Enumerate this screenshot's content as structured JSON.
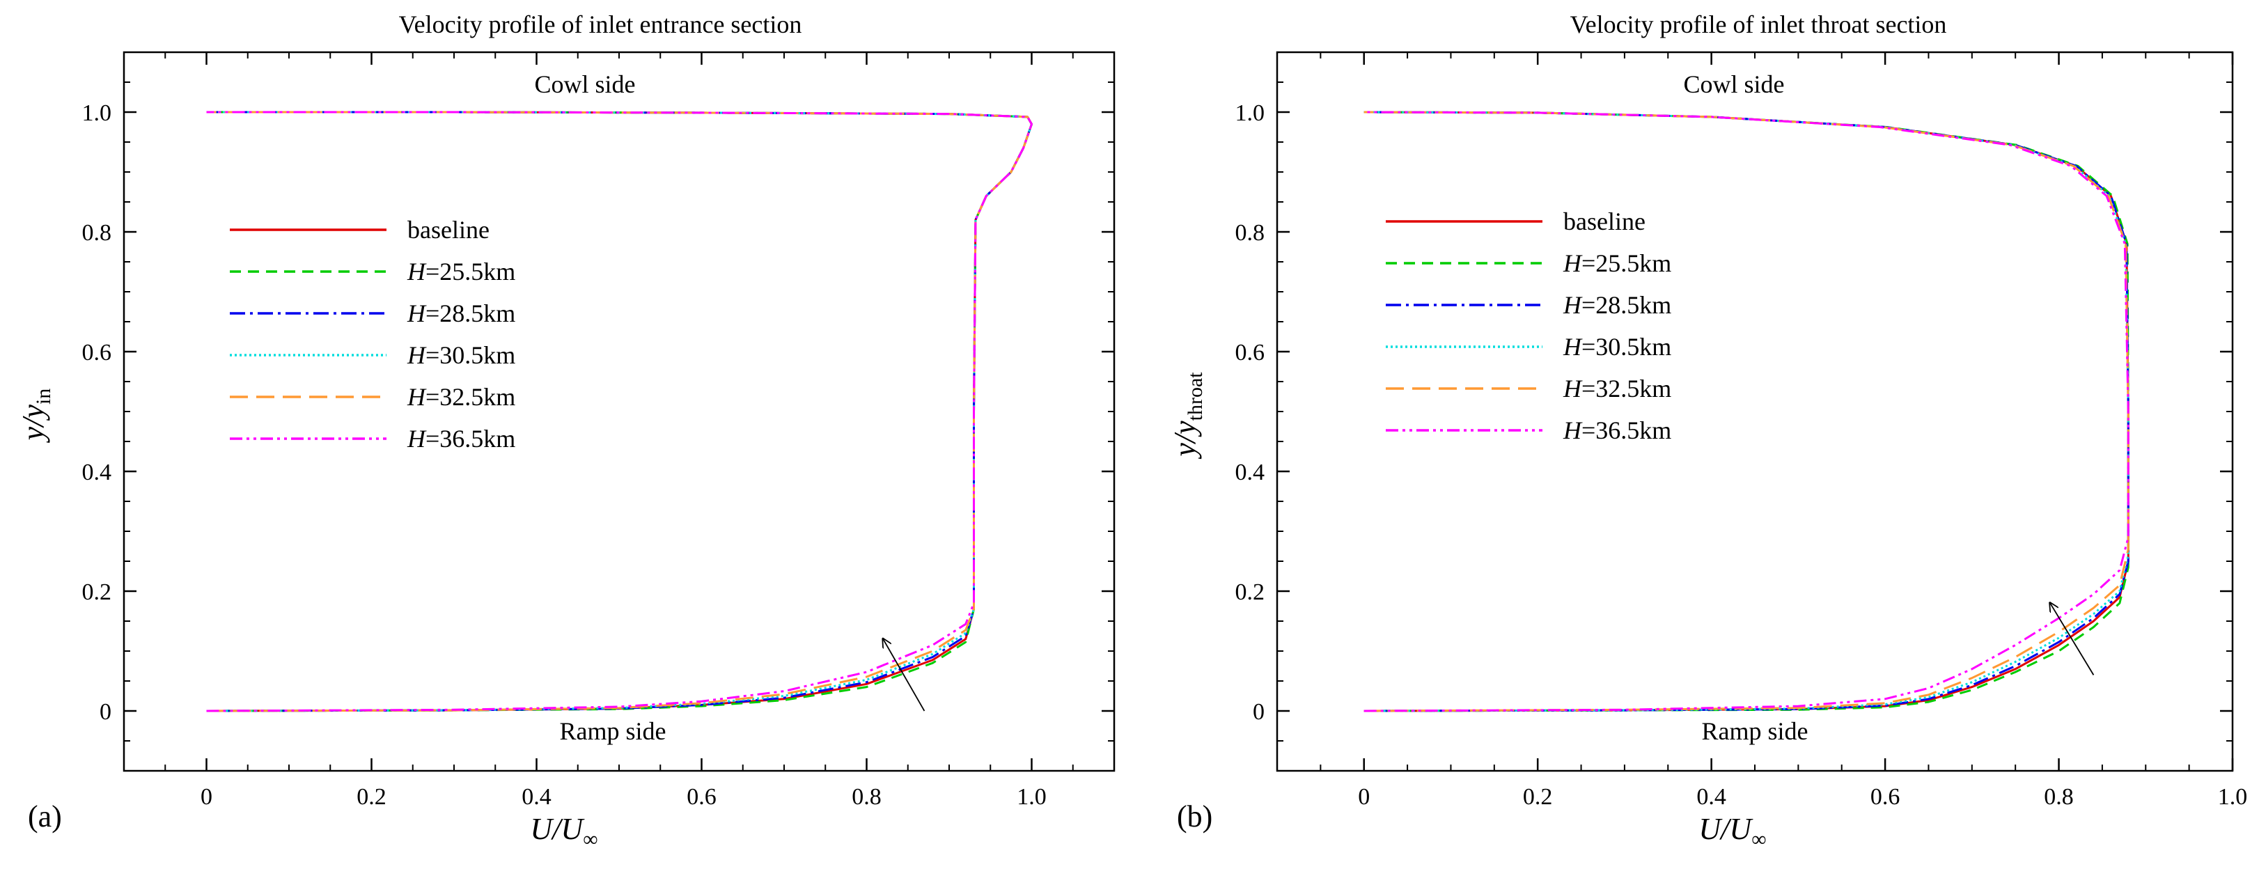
{
  "chart_data": [
    {
      "type": "line",
      "panel_label": "(a)",
      "title": "Velocity profile of inlet entrance section",
      "xlabel": "U/U∞",
      "ylabel": "y/yin",
      "xlim": [
        -0.1,
        1.1
      ],
      "ylim": [
        -0.1,
        1.1
      ],
      "xticks": [
        "0",
        "0.2",
        "0.4",
        "0.6",
        "0.8",
        "1.0"
      ],
      "yticks": [
        "0",
        "0.2",
        "0.4",
        "0.6",
        "0.8",
        "1.0"
      ],
      "annotations": {
        "top": "Cowl side",
        "bottom": "Ramp side"
      },
      "legend_position": "upper-left",
      "series": [
        {
          "name": "baseline",
          "color": "#e00000",
          "dash": "",
          "points": [
            [
              0,
              0
            ],
            [
              0.3,
              0.001
            ],
            [
              0.5,
              0.004
            ],
            [
              0.6,
              0.01
            ],
            [
              0.7,
              0.02
            ],
            [
              0.8,
              0.045
            ],
            [
              0.88,
              0.085
            ],
            [
              0.92,
              0.12
            ],
            [
              0.93,
              0.17
            ],
            [
              0.93,
              0.5
            ],
            [
              0.932,
              0.82
            ],
            [
              0.945,
              0.86
            ],
            [
              0.975,
              0.9
            ],
            [
              0.99,
              0.94
            ],
            [
              1.0,
              0.98
            ],
            [
              0.995,
              0.992
            ],
            [
              0.9,
              0.997
            ],
            [
              0.6,
              0.999
            ],
            [
              0.3,
              1.0
            ],
            [
              0,
              1.0
            ]
          ]
        },
        {
          "name": "H=25.5km",
          "color": "#00cc00",
          "dash": "16,10",
          "points": [
            [
              0,
              0
            ],
            [
              0.3,
              0.001
            ],
            [
              0.5,
              0.003
            ],
            [
              0.6,
              0.008
            ],
            [
              0.7,
              0.018
            ],
            [
              0.8,
              0.04
            ],
            [
              0.88,
              0.08
            ],
            [
              0.92,
              0.115
            ],
            [
              0.93,
              0.17
            ],
            [
              0.93,
              0.5
            ],
            [
              0.932,
              0.82
            ],
            [
              0.945,
              0.86
            ],
            [
              0.975,
              0.9
            ],
            [
              0.99,
              0.94
            ],
            [
              1.0,
              0.98
            ],
            [
              0.995,
              0.992
            ],
            [
              0.9,
              0.997
            ],
            [
              0.6,
              0.999
            ],
            [
              0.3,
              1.0
            ],
            [
              0,
              1.0
            ]
          ]
        },
        {
          "name": "H=28.5km",
          "color": "#0000ee",
          "dash": "22,7,4,7",
          "points": [
            [
              0,
              0
            ],
            [
              0.3,
              0.001
            ],
            [
              0.5,
              0.004
            ],
            [
              0.6,
              0.01
            ],
            [
              0.7,
              0.022
            ],
            [
              0.8,
              0.048
            ],
            [
              0.88,
              0.09
            ],
            [
              0.92,
              0.125
            ],
            [
              0.93,
              0.17
            ],
            [
              0.93,
              0.5
            ],
            [
              0.932,
              0.82
            ],
            [
              0.945,
              0.86
            ],
            [
              0.975,
              0.9
            ],
            [
              0.99,
              0.94
            ],
            [
              1.0,
              0.98
            ],
            [
              0.995,
              0.992
            ],
            [
              0.9,
              0.997
            ],
            [
              0.6,
              0.999
            ],
            [
              0.3,
              1.0
            ],
            [
              0,
              1.0
            ]
          ]
        },
        {
          "name": "H=30.5km",
          "color": "#00dddd",
          "dash": "3,4",
          "points": [
            [
              0,
              0
            ],
            [
              0.3,
              0.001
            ],
            [
              0.5,
              0.005
            ],
            [
              0.6,
              0.012
            ],
            [
              0.7,
              0.025
            ],
            [
              0.8,
              0.052
            ],
            [
              0.88,
              0.095
            ],
            [
              0.92,
              0.13
            ],
            [
              0.93,
              0.17
            ],
            [
              0.93,
              0.5
            ],
            [
              0.932,
              0.82
            ],
            [
              0.945,
              0.86
            ],
            [
              0.975,
              0.9
            ],
            [
              0.99,
              0.94
            ],
            [
              1.0,
              0.98
            ],
            [
              0.995,
              0.992
            ],
            [
              0.9,
              0.997
            ],
            [
              0.6,
              0.999
            ],
            [
              0.3,
              1.0
            ],
            [
              0,
              1.0
            ]
          ]
        },
        {
          "name": "H=32.5km",
          "color": "#ff9933",
          "dash": "26,12",
          "points": [
            [
              0,
              0
            ],
            [
              0.3,
              0.001
            ],
            [
              0.5,
              0.005
            ],
            [
              0.6,
              0.013
            ],
            [
              0.7,
              0.028
            ],
            [
              0.8,
              0.057
            ],
            [
              0.88,
              0.1
            ],
            [
              0.92,
              0.135
            ],
            [
              0.93,
              0.17
            ],
            [
              0.93,
              0.5
            ],
            [
              0.932,
              0.82
            ],
            [
              0.945,
              0.86
            ],
            [
              0.975,
              0.9
            ],
            [
              0.99,
              0.94
            ],
            [
              1.0,
              0.98
            ],
            [
              0.995,
              0.992
            ],
            [
              0.9,
              0.997
            ],
            [
              0.6,
              0.999
            ],
            [
              0.3,
              1.0
            ],
            [
              0,
              1.0
            ]
          ]
        },
        {
          "name": "H=36.5km",
          "color": "#ff00ff",
          "dash": "18,6,4,6,4,6",
          "points": [
            [
              0,
              0
            ],
            [
              0.3,
              0.002
            ],
            [
              0.5,
              0.007
            ],
            [
              0.6,
              0.016
            ],
            [
              0.7,
              0.033
            ],
            [
              0.8,
              0.065
            ],
            [
              0.88,
              0.11
            ],
            [
              0.92,
              0.145
            ],
            [
              0.93,
              0.18
            ],
            [
              0.93,
              0.5
            ],
            [
              0.932,
              0.82
            ],
            [
              0.945,
              0.86
            ],
            [
              0.975,
              0.9
            ],
            [
              0.99,
              0.94
            ],
            [
              1.0,
              0.98
            ],
            [
              0.995,
              0.992
            ],
            [
              0.9,
              0.997
            ],
            [
              0.6,
              0.999
            ],
            [
              0.3,
              1.0
            ],
            [
              0,
              1.0
            ]
          ]
        }
      ],
      "arrow": {
        "from": [
          0.87,
          0.0
        ],
        "to": [
          0.82,
          0.12
        ]
      }
    },
    {
      "type": "line",
      "panel_label": "(b)",
      "title": "Velocity profile of inlet throat section",
      "xlabel": "U/U∞",
      "ylabel": "y/ythroat",
      "xlim": [
        -0.1,
        1.0
      ],
      "ylim": [
        -0.1,
        1.1
      ],
      "xticks": [
        "0",
        "0.2",
        "0.4",
        "0.6",
        "0.8",
        "1.0"
      ],
      "yticks": [
        "0",
        "0.2",
        "0.4",
        "0.6",
        "0.8",
        "1.0"
      ],
      "annotations": {
        "top": "Cowl side",
        "bottom": "Ramp side"
      },
      "legend_position": "upper-left",
      "series": [
        {
          "name": "baseline",
          "color": "#e00000",
          "dash": "",
          "points": [
            [
              0,
              0
            ],
            [
              0.3,
              0.001
            ],
            [
              0.5,
              0.003
            ],
            [
              0.6,
              0.008
            ],
            [
              0.65,
              0.018
            ],
            [
              0.7,
              0.04
            ],
            [
              0.75,
              0.07
            ],
            [
              0.8,
              0.11
            ],
            [
              0.84,
              0.15
            ],
            [
              0.87,
              0.19
            ],
            [
              0.88,
              0.25
            ],
            [
              0.88,
              0.5
            ],
            [
              0.878,
              0.78
            ],
            [
              0.86,
              0.86
            ],
            [
              0.82,
              0.91
            ],
            [
              0.75,
              0.945
            ],
            [
              0.6,
              0.975
            ],
            [
              0.4,
              0.992
            ],
            [
              0.2,
              0.999
            ],
            [
              0,
              1.0
            ]
          ]
        },
        {
          "name": "H=25.5km",
          "color": "#00cc00",
          "dash": "16,10",
          "points": [
            [
              0,
              0
            ],
            [
              0.3,
              0.001
            ],
            [
              0.5,
              0.002
            ],
            [
              0.6,
              0.006
            ],
            [
              0.65,
              0.015
            ],
            [
              0.7,
              0.035
            ],
            [
              0.75,
              0.065
            ],
            [
              0.8,
              0.1
            ],
            [
              0.84,
              0.14
            ],
            [
              0.87,
              0.18
            ],
            [
              0.88,
              0.24
            ],
            [
              0.88,
              0.5
            ],
            [
              0.879,
              0.78
            ],
            [
              0.862,
              0.86
            ],
            [
              0.822,
              0.91
            ],
            [
              0.752,
              0.945
            ],
            [
              0.602,
              0.975
            ],
            [
              0.4,
              0.992
            ],
            [
              0.2,
              0.999
            ],
            [
              0,
              1.0
            ]
          ]
        },
        {
          "name": "H=28.5km",
          "color": "#0000ee",
          "dash": "22,7,4,7",
          "points": [
            [
              0,
              0
            ],
            [
              0.3,
              0.001
            ],
            [
              0.5,
              0.003
            ],
            [
              0.6,
              0.009
            ],
            [
              0.65,
              0.02
            ],
            [
              0.7,
              0.043
            ],
            [
              0.75,
              0.075
            ],
            [
              0.8,
              0.115
            ],
            [
              0.84,
              0.155
            ],
            [
              0.87,
              0.195
            ],
            [
              0.88,
              0.25
            ],
            [
              0.88,
              0.5
            ],
            [
              0.878,
              0.78
            ],
            [
              0.86,
              0.86
            ],
            [
              0.82,
              0.91
            ],
            [
              0.75,
              0.945
            ],
            [
              0.6,
              0.975
            ],
            [
              0.4,
              0.992
            ],
            [
              0.2,
              0.999
            ],
            [
              0,
              1.0
            ]
          ]
        },
        {
          "name": "H=30.5km",
          "color": "#00dddd",
          "dash": "3,4",
          "points": [
            [
              0,
              0
            ],
            [
              0.3,
              0.001
            ],
            [
              0.5,
              0.004
            ],
            [
              0.6,
              0.011
            ],
            [
              0.65,
              0.023
            ],
            [
              0.7,
              0.048
            ],
            [
              0.75,
              0.082
            ],
            [
              0.8,
              0.122
            ],
            [
              0.84,
              0.162
            ],
            [
              0.87,
              0.2
            ],
            [
              0.88,
              0.26
            ],
            [
              0.88,
              0.5
            ],
            [
              0.877,
              0.78
            ],
            [
              0.858,
              0.86
            ],
            [
              0.818,
              0.91
            ],
            [
              0.748,
              0.945
            ],
            [
              0.598,
              0.975
            ],
            [
              0.4,
              0.992
            ],
            [
              0.2,
              0.999
            ],
            [
              0,
              1.0
            ]
          ]
        },
        {
          "name": "H=32.5km",
          "color": "#ff9933",
          "dash": "26,12",
          "points": [
            [
              0,
              0
            ],
            [
              0.3,
              0.002
            ],
            [
              0.5,
              0.005
            ],
            [
              0.6,
              0.013
            ],
            [
              0.65,
              0.027
            ],
            [
              0.7,
              0.055
            ],
            [
              0.75,
              0.09
            ],
            [
              0.8,
              0.132
            ],
            [
              0.84,
              0.172
            ],
            [
              0.87,
              0.21
            ],
            [
              0.88,
              0.27
            ],
            [
              0.88,
              0.5
            ],
            [
              0.877,
              0.78
            ],
            [
              0.857,
              0.86
            ],
            [
              0.817,
              0.91
            ],
            [
              0.747,
              0.945
            ],
            [
              0.597,
              0.975
            ],
            [
              0.4,
              0.992
            ],
            [
              0.2,
              0.999
            ],
            [
              0,
              1.0
            ]
          ]
        },
        {
          "name": "H=36.5km",
          "color": "#ff00ff",
          "dash": "18,6,4,6,4,6",
          "points": [
            [
              0,
              0
            ],
            [
              0.3,
              0.002
            ],
            [
              0.5,
              0.008
            ],
            [
              0.6,
              0.02
            ],
            [
              0.65,
              0.038
            ],
            [
              0.7,
              0.07
            ],
            [
              0.75,
              0.11
            ],
            [
              0.8,
              0.155
            ],
            [
              0.84,
              0.195
            ],
            [
              0.87,
              0.235
            ],
            [
              0.88,
              0.29
            ],
            [
              0.88,
              0.5
            ],
            [
              0.876,
              0.78
            ],
            [
              0.855,
              0.86
            ],
            [
              0.814,
              0.91
            ],
            [
              0.744,
              0.945
            ],
            [
              0.594,
              0.975
            ],
            [
              0.4,
              0.992
            ],
            [
              0.2,
              0.999
            ],
            [
              0,
              1.0
            ]
          ]
        }
      ],
      "arrow": {
        "from": [
          0.84,
          0.06
        ],
        "to": [
          0.79,
          0.18
        ]
      }
    }
  ]
}
